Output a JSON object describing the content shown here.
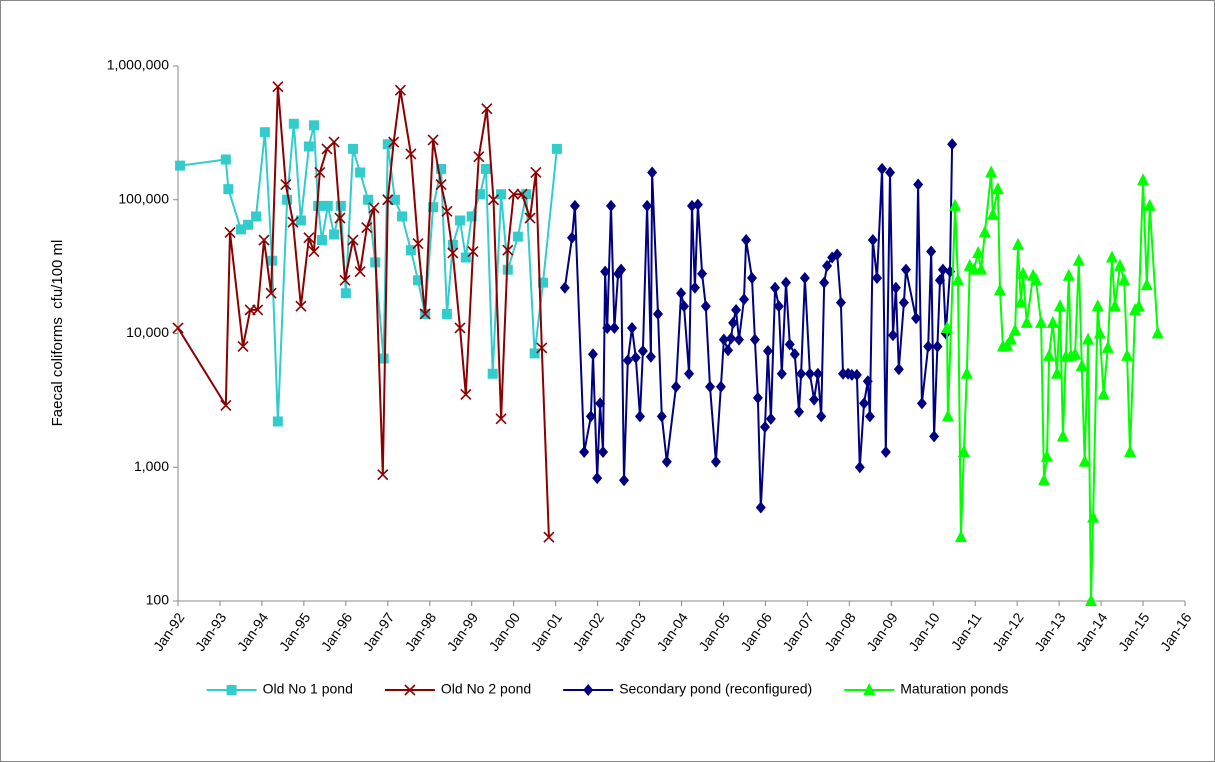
{
  "chart_data": {
    "type": "line",
    "y_label": "Faecal coliforms  cfu/100 ml",
    "log_scale_y": true,
    "grid": false,
    "legend": "bottom",
    "xlim": [
      1992,
      2016
    ],
    "xticks": [
      {
        "value": 1992,
        "label": "Jan-92"
      },
      {
        "value": 1993,
        "label": "Jan-93"
      },
      {
        "value": 1994,
        "label": "Jan-94"
      },
      {
        "value": 1995,
        "label": "Jan-95"
      },
      {
        "value": 1996,
        "label": "Jan-96"
      },
      {
        "value": 1997,
        "label": "Jan-97"
      },
      {
        "value": 1998,
        "label": "Jan-98"
      },
      {
        "value": 1999,
        "label": "Jan-99"
      },
      {
        "value": 2000,
        "label": "Jan-00"
      },
      {
        "value": 2001,
        "label": "Jan-01"
      },
      {
        "value": 2002,
        "label": "Jan-02"
      },
      {
        "value": 2003,
        "label": "Jan-03"
      },
      {
        "value": 2004,
        "label": "Jan-04"
      },
      {
        "value": 2005,
        "label": "Jan-05"
      },
      {
        "value": 2006,
        "label": "Jan-06"
      },
      {
        "value": 2007,
        "label": "Jan-07"
      },
      {
        "value": 2008,
        "label": "Jan-08"
      },
      {
        "value": 2009,
        "label": "Jan-09"
      },
      {
        "value": 2010,
        "label": "Jan-10"
      },
      {
        "value": 2011,
        "label": "Jan-11"
      },
      {
        "value": 2012,
        "label": "Jan-12"
      },
      {
        "value": 2013,
        "label": "Jan-13"
      },
      {
        "value": 2014,
        "label": "Jan-14"
      },
      {
        "value": 2015,
        "label": "Jan-15"
      },
      {
        "value": 2016,
        "label": "Jan-16"
      }
    ],
    "ylim": [
      100,
      1000000
    ],
    "yticks": [
      100,
      {
        "value": 1000,
        "label": "1,000"
      },
      {
        "value": 10000,
        "label": "10,000"
      },
      {
        "value": 100000,
        "label": "100,000"
      },
      {
        "value": 1000000,
        "label": "1,000,000"
      }
    ],
    "series": [
      {
        "name": "Old No 1 pond",
        "color": "#33cccc",
        "marker": "square",
        "x": [
          1992.05,
          1993.14,
          1993.2,
          1993.5,
          1993.67,
          1993.86,
          1994.07,
          1994.24,
          1994.38,
          1994.6,
          1994.76,
          1994.93,
          1995.12,
          1995.24,
          1995.34,
          1995.43,
          1995.57,
          1995.72,
          1995.88,
          1996.0,
          1996.17,
          1996.34,
          1996.53,
          1996.7,
          1996.9,
          1997.0,
          1997.17,
          1997.34,
          1997.55,
          1997.72,
          1997.89,
          1998.08,
          1998.27,
          1998.41,
          1998.55,
          1998.72,
          1998.86,
          1999.0,
          1999.2,
          1999.34,
          1999.5,
          1999.7,
          1999.86,
          2000.1,
          2000.3,
          2000.5,
          2000.7,
          2001.03
        ],
        "values": [
          180000,
          200000,
          120000,
          60000,
          65000,
          75000,
          320000,
          35000,
          2200,
          100000,
          370000,
          70000,
          250000,
          360000,
          90000,
          50000,
          90000,
          55000,
          90000,
          20000,
          240000,
          160000,
          100000,
          34000,
          6500,
          260000,
          100000,
          75000,
          42000,
          25000,
          14000,
          88000,
          170000,
          14000,
          46000,
          70000,
          37000,
          75000,
          110000,
          170000,
          5000,
          110000,
          30000,
          53000,
          110000,
          7100,
          24000,
          240000
        ]
      },
      {
        "name": "Old No 2 pond",
        "color": "#8b0000",
        "marker": "x",
        "x": [
          1992.0,
          1993.14,
          1993.24,
          1993.55,
          1993.72,
          1993.9,
          1994.05,
          1994.22,
          1994.38,
          1994.57,
          1994.74,
          1994.93,
          1995.12,
          1995.24,
          1995.38,
          1995.55,
          1995.72,
          1995.86,
          1995.98,
          1996.17,
          1996.34,
          1996.5,
          1996.67,
          1996.88,
          1997.0,
          1997.14,
          1997.3,
          1997.55,
          1997.72,
          1997.89,
          1998.08,
          1998.27,
          1998.41,
          1998.55,
          1998.72,
          1998.86,
          1999.03,
          1999.17,
          1999.36,
          1999.52,
          1999.7,
          1999.86,
          2000.0,
          2000.2,
          2000.39,
          2000.53,
          2000.67,
          2000.84
        ],
        "values": [
          11000,
          2900,
          57000,
          8000,
          15000,
          15000,
          50000,
          20000,
          700000,
          130000,
          68000,
          16000,
          52000,
          41000,
          160000,
          240000,
          270000,
          73000,
          25000,
          50000,
          29000,
          62000,
          87000,
          880,
          100000,
          270000,
          660000,
          220000,
          47000,
          14000,
          280000,
          130000,
          82000,
          40000,
          11000,
          3500,
          41000,
          210000,
          480000,
          100000,
          2300,
          42000,
          110000,
          110000,
          73000,
          160000,
          7800,
          300
        ]
      },
      {
        "name": "Secondary pond (reconfigured)",
        "color": "#000080",
        "marker": "diamond",
        "x": [
          2001.22,
          2001.39,
          2001.46,
          2001.68,
          2001.84,
          2001.89,
          2001.99,
          2002.06,
          2002.13,
          2002.18,
          2002.23,
          2002.32,
          2002.4,
          2002.49,
          2002.56,
          2002.63,
          2002.72,
          2002.82,
          2002.91,
          2003.01,
          2003.08,
          2003.18,
          2003.27,
          2003.3,
          2003.44,
          2003.53,
          2003.65,
          2003.87,
          2003.99,
          2004.06,
          2004.18,
          2004.25,
          2004.32,
          2004.39,
          2004.49,
          2004.58,
          2004.68,
          2004.82,
          2004.94,
          2005.01,
          2005.11,
          2005.18,
          2005.23,
          2005.3,
          2005.37,
          2005.49,
          2005.54,
          2005.68,
          2005.75,
          2005.82,
          2005.89,
          2005.99,
          2006.06,
          2006.13,
          2006.23,
          2006.32,
          2006.39,
          2006.49,
          2006.58,
          2006.7,
          2006.8,
          2006.85,
          2006.94,
          2007.06,
          2007.16,
          2007.25,
          2007.33,
          2007.4,
          2007.47,
          2007.59,
          2007.71,
          2007.8,
          2007.85,
          2007.97,
          2008.06,
          2008.18,
          2008.25,
          2008.35,
          2008.44,
          2008.49,
          2008.56,
          2008.66,
          2008.78,
          2008.87,
          2008.97,
          2009.04,
          2009.11,
          2009.18,
          2009.3,
          2009.35,
          2009.59,
          2009.64,
          2009.73,
          2009.88,
          2009.95,
          2010.02,
          2010.1,
          2010.16,
          2010.23,
          2010.3,
          2010.4,
          2010.45
        ],
        "values": [
          22000,
          52000,
          90000,
          1300,
          2400,
          7000,
          830,
          3000,
          1300,
          29000,
          11000,
          90000,
          11000,
          28000,
          30000,
          800,
          6300,
          11000,
          6600,
          2400,
          7400,
          90000,
          6700,
          160000,
          14000,
          2400,
          1100,
          4000,
          20000,
          16000,
          5000,
          90000,
          22000,
          92000,
          28000,
          16000,
          4000,
          1100,
          4000,
          9000,
          7500,
          9200,
          12000,
          15000,
          9000,
          18000,
          50000,
          26000,
          9000,
          3300,
          500,
          2000,
          7400,
          2300,
          22000,
          16000,
          5000,
          24000,
          8300,
          7000,
          2600,
          5000,
          26000,
          5000,
          3200,
          5000,
          2400,
          24000,
          32000,
          37000,
          39000,
          17000,
          5000,
          5000,
          4900,
          4900,
          1000,
          3000,
          4400,
          2400,
          50000,
          26000,
          170000,
          1300,
          160000,
          9700,
          22000,
          5400,
          17000,
          30000,
          13000,
          130000,
          3000,
          8000,
          41000,
          1700,
          8000,
          25000,
          30000,
          10000,
          29000,
          260000
        ]
      },
      {
        "name": "Maturation ponds",
        "color": "#00ff00",
        "marker": "triangle",
        "x": [
          2010.33,
          2010.35,
          2010.52,
          2010.59,
          2010.66,
          2010.73,
          2010.8,
          2010.87,
          2010.97,
          2011.07,
          2011.14,
          2011.23,
          2011.38,
          2011.42,
          2011.54,
          2011.59,
          2011.66,
          2011.76,
          2011.85,
          2011.95,
          2012.02,
          2012.09,
          2012.14,
          2012.23,
          2012.38,
          2012.45,
          2012.57,
          2012.64,
          2012.71,
          2012.76,
          2012.85,
          2012.95,
          2013.02,
          2013.09,
          2013.16,
          2013.23,
          2013.28,
          2013.38,
          2013.47,
          2013.54,
          2013.61,
          2013.69,
          2013.76,
          2013.81,
          2013.92,
          2013.97,
          2014.06,
          2014.16,
          2014.26,
          2014.33,
          2014.45,
          2014.55,
          2014.62,
          2014.69,
          2014.81,
          2014.9,
          2015.0,
          2015.09,
          2015.16,
          2015.35
        ],
        "values": [
          11000,
          2400,
          90000,
          25000,
          300,
          1300,
          5000,
          32000,
          30000,
          40000,
          30000,
          57000,
          160000,
          77000,
          120000,
          21000,
          8000,
          8100,
          9000,
          10500,
          46000,
          17000,
          28000,
          12000,
          27000,
          25000,
          12000,
          800,
          1200,
          6800,
          12000,
          5000,
          16000,
          1700,
          6700,
          27000,
          6800,
          7000,
          35000,
          5700,
          1100,
          9000,
          100,
          420,
          16000,
          10000,
          3500,
          7800,
          37000,
          16000,
          32000,
          25000,
          6800,
          1300,
          15000,
          16000,
          140000,
          23000,
          90000,
          10000
        ]
      }
    ]
  }
}
